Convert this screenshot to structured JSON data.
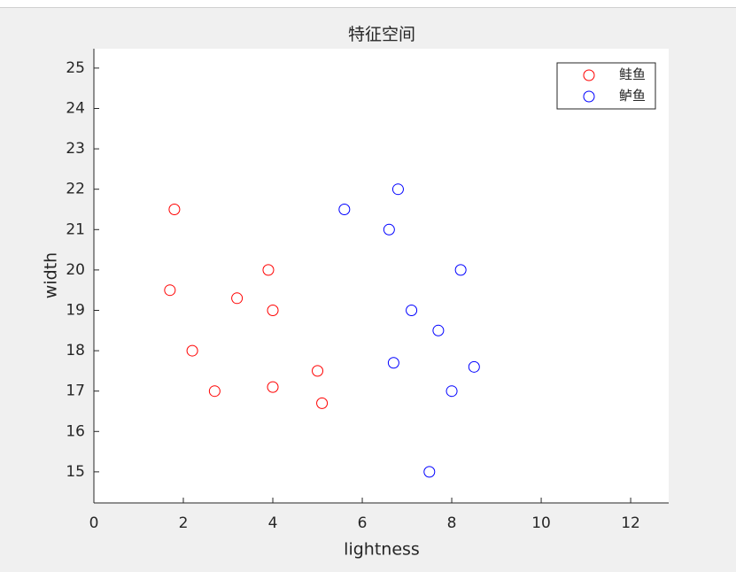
{
  "chart_data": {
    "type": "scatter",
    "title": "特征空间",
    "xlabel": "lightness",
    "ylabel": "width",
    "xlim": [
      0,
      12.85
    ],
    "ylim": [
      14.23,
      25.48
    ],
    "xticks": [
      0,
      2,
      4,
      6,
      8,
      10,
      12
    ],
    "yticks": [
      15,
      16,
      17,
      18,
      19,
      20,
      21,
      22,
      23,
      24,
      25
    ],
    "legend": "northeast",
    "series": [
      {
        "name": "鲑鱼",
        "color": "#ff0000",
        "x": [
          1.8,
          1.7,
          2.2,
          2.7,
          3.2,
          3.9,
          4.0,
          4.0,
          5.0,
          5.1
        ],
        "values": [
          21.5,
          19.5,
          18,
          17,
          19.3,
          20,
          19,
          17.1,
          17.5,
          16.7
        ]
      },
      {
        "name": "鲈鱼",
        "color": "#0000ff",
        "x": [
          5.6,
          6.8,
          6.6,
          8.2,
          7.1,
          7.7,
          6.7,
          8.5,
          8.0,
          7.5
        ],
        "values": [
          21.5,
          22,
          21,
          20,
          19,
          18.5,
          17.7,
          17.6,
          17,
          15
        ]
      }
    ]
  }
}
